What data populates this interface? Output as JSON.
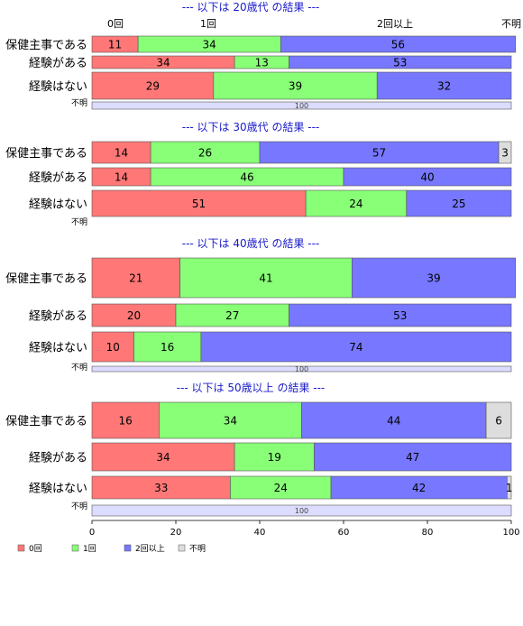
{
  "chart_data": {
    "type": "bar",
    "orientation": "horizontal",
    "stacked": true,
    "xlim": [
      0,
      100
    ],
    "x_ticks": [
      "0",
      "20",
      "40",
      "60",
      "80",
      "100"
    ],
    "grid": false,
    "legend_position": "bottom-left",
    "column_headers": [
      "0回",
      "1回",
      "2回以上",
      "不明"
    ],
    "colors": {
      "0回": "#ff7777",
      "1回": "#88ff77",
      "2回以上": "#7777ff",
      "不明": "#dddddd",
      "unknown_total": "#dcdcff"
    },
    "legend": [
      {
        "label": "0回",
        "color": "#ff7777"
      },
      {
        "label": "1回",
        "color": "#88ff77"
      },
      {
        "label": "2回以上",
        "color": "#7777ff"
      },
      {
        "label": "不明",
        "color": "#dddddd"
      }
    ],
    "panels": [
      {
        "title": "--- 以下は 20歳代 の結果 ---",
        "categories": [
          "保健主事である",
          "経験がある",
          "経験はない"
        ],
        "series": [
          {
            "name": "0回",
            "values": [
              11,
              34,
              29
            ]
          },
          {
            "name": "1回",
            "values": [
              34,
              13,
              39
            ]
          },
          {
            "name": "2回以上",
            "values": [
              56,
              53,
              32
            ]
          },
          {
            "name": "不明",
            "values": [
              0,
              0,
              0
            ]
          }
        ],
        "unknown_label": "不明",
        "unknown_value": 100
      },
      {
        "title": "--- 以下は 30歳代 の結果 ---",
        "categories": [
          "保健主事である",
          "経験がある",
          "経験はない"
        ],
        "series": [
          {
            "name": "0回",
            "values": [
              14,
              14,
              51
            ]
          },
          {
            "name": "1回",
            "values": [
              26,
              46,
              24
            ]
          },
          {
            "name": "2回以上",
            "values": [
              57,
              40,
              25
            ]
          },
          {
            "name": "不明",
            "values": [
              3,
              0,
              0
            ]
          }
        ],
        "unknown_label": "不明",
        "unknown_value": null
      },
      {
        "title": "--- 以下は 40歳代 の結果 ---",
        "categories": [
          "保健主事である",
          "経験がある",
          "経験はない"
        ],
        "series": [
          {
            "name": "0回",
            "values": [
              21,
              20,
              10
            ]
          },
          {
            "name": "1回",
            "values": [
              41,
              27,
              16
            ]
          },
          {
            "name": "2回以上",
            "values": [
              39,
              53,
              74
            ]
          },
          {
            "name": "不明",
            "values": [
              0,
              0,
              0
            ]
          }
        ],
        "unknown_label": "不明",
        "unknown_value": 100
      },
      {
        "title": "--- 以下は 50歳以上 の結果 ---",
        "categories": [
          "保健主事である",
          "経験がある",
          "経験はない"
        ],
        "series": [
          {
            "name": "0回",
            "values": [
              16,
              34,
              33
            ]
          },
          {
            "name": "1回",
            "values": [
              34,
              19,
              24
            ]
          },
          {
            "name": "2回以上",
            "values": [
              44,
              47,
              42
            ]
          },
          {
            "name": "不明",
            "values": [
              6,
              0,
              1
            ]
          }
        ],
        "unknown_label": "不明",
        "unknown_value": 100
      }
    ]
  }
}
